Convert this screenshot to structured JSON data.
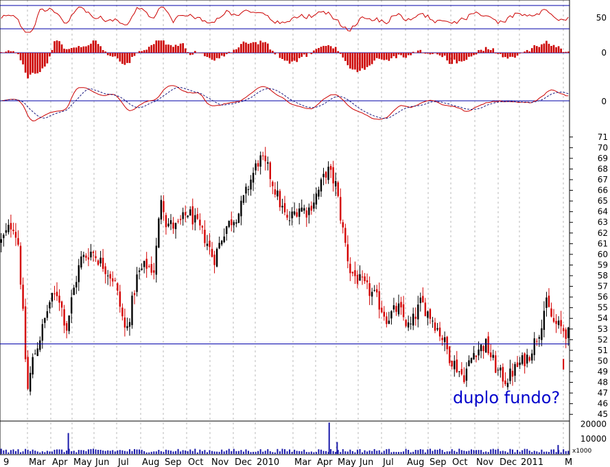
{
  "chart_data": {
    "type": "candlestick",
    "title": "",
    "annotation": "duplo fundo?",
    "volume_multiplier_label": "x1000",
    "months": [
      {
        "label": "9"
      },
      {
        "label": "Mar"
      },
      {
        "label": "Apr"
      },
      {
        "label": "May"
      },
      {
        "label": "Jun"
      },
      {
        "label": "Jul"
      },
      {
        "label": "Aug"
      },
      {
        "label": "Sep"
      },
      {
        "label": "Oct"
      },
      {
        "label": "Nov"
      },
      {
        "label": "Dec"
      },
      {
        "label": "2010"
      },
      {
        "label": "Mar"
      },
      {
        "label": "Apr"
      },
      {
        "label": "May"
      },
      {
        "label": "Jun"
      },
      {
        "label": "Jul"
      },
      {
        "label": "Aug"
      },
      {
        "label": "Sep"
      },
      {
        "label": "Oct"
      },
      {
        "label": "Nov"
      },
      {
        "label": "Dec"
      },
      {
        "label": "2011"
      },
      {
        "label": "M"
      }
    ],
    "price_axis": {
      "min": 44.5,
      "max": 71.5,
      "ticks": [
        45,
        46,
        47,
        48,
        49,
        50,
        51,
        52,
        53,
        54,
        55,
        56,
        57,
        58,
        59,
        60,
        61,
        62,
        63,
        64,
        65,
        66,
        67,
        68,
        69,
        70,
        71
      ]
    },
    "support_level": 51.6,
    "price_path_anchors": [
      {
        "t": 0.0,
        "v": 61.2
      },
      {
        "t": 0.02,
        "v": 63.0
      },
      {
        "t": 0.03,
        "v": 61.0
      },
      {
        "t": 0.04,
        "v": 53.0
      },
      {
        "t": 0.046,
        "v": 47.0
      },
      {
        "t": 0.055,
        "v": 50.0
      },
      {
        "t": 0.07,
        "v": 52.5
      },
      {
        "t": 0.085,
        "v": 55.5
      },
      {
        "t": 0.1,
        "v": 56.5
      },
      {
        "t": 0.115,
        "v": 53.0
      },
      {
        "t": 0.125,
        "v": 56.0
      },
      {
        "t": 0.14,
        "v": 59.5
      },
      {
        "t": 0.16,
        "v": 60.3
      },
      {
        "t": 0.18,
        "v": 59.0
      },
      {
        "t": 0.2,
        "v": 57.5
      },
      {
        "t": 0.22,
        "v": 52.5
      },
      {
        "t": 0.24,
        "v": 58.0
      },
      {
        "t": 0.255,
        "v": 59.0
      },
      {
        "t": 0.27,
        "v": 58.5
      },
      {
        "t": 0.283,
        "v": 66.0
      },
      {
        "t": 0.29,
        "v": 63.0
      },
      {
        "t": 0.31,
        "v": 62.5
      },
      {
        "t": 0.33,
        "v": 64.0
      },
      {
        "t": 0.36,
        "v": 61.5
      },
      {
        "t": 0.375,
        "v": 59.5
      },
      {
        "t": 0.395,
        "v": 62.5
      },
      {
        "t": 0.42,
        "v": 64.0
      },
      {
        "t": 0.44,
        "v": 67.0
      },
      {
        "t": 0.455,
        "v": 69.0
      },
      {
        "t": 0.47,
        "v": 68.0
      },
      {
        "t": 0.49,
        "v": 65.0
      },
      {
        "t": 0.505,
        "v": 63.0
      },
      {
        "t": 0.525,
        "v": 64.5
      },
      {
        "t": 0.54,
        "v": 64.0
      },
      {
        "t": 0.56,
        "v": 66.0
      },
      {
        "t": 0.575,
        "v": 68.0
      },
      {
        "t": 0.59,
        "v": 66.5
      },
      {
        "t": 0.6,
        "v": 63.0
      },
      {
        "t": 0.615,
        "v": 58.5
      },
      {
        "t": 0.64,
        "v": 57.0
      },
      {
        "t": 0.66,
        "v": 56.0
      },
      {
        "t": 0.68,
        "v": 54.0
      },
      {
        "t": 0.7,
        "v": 55.0
      },
      {
        "t": 0.72,
        "v": 53.0
      },
      {
        "t": 0.74,
        "v": 55.5
      },
      {
        "t": 0.76,
        "v": 54.0
      },
      {
        "t": 0.78,
        "v": 52.0
      },
      {
        "t": 0.79,
        "v": 50.5
      },
      {
        "t": 0.815,
        "v": 48.5
      },
      {
        "t": 0.835,
        "v": 51.0
      },
      {
        "t": 0.855,
        "v": 51.5
      },
      {
        "t": 0.875,
        "v": 49.0
      },
      {
        "t": 0.89,
        "v": 48.2
      },
      {
        "t": 0.91,
        "v": 49.5
      },
      {
        "t": 0.93,
        "v": 50.5
      },
      {
        "t": 0.95,
        "v": 53.0
      },
      {
        "t": 0.96,
        "v": 55.5
      },
      {
        "t": 0.975,
        "v": 53.5
      },
      {
        "t": 0.99,
        "v": 53.0
      },
      {
        "t": 1.0,
        "v": 52.5
      }
    ],
    "late_gap_candle": {
      "open": 50.2,
      "close": 49.2
    },
    "indicators": [
      {
        "name": "oscillator-1",
        "tick_label": "50",
        "upper_line_label": ""
      },
      {
        "name": "histogram",
        "tick_label": "0"
      },
      {
        "name": "macd",
        "tick_label": "0"
      }
    ],
    "volume_axis": {
      "ticks": [
        {
          "value": 20000,
          "label": "20000"
        },
        {
          "value": 10000,
          "label": "10000"
        }
      ]
    },
    "volume_spikes": [
      {
        "t": 0.12,
        "value": 14000
      },
      {
        "t": 0.578,
        "value": 21000
      },
      {
        "t": 0.592,
        "value": 8000
      },
      {
        "t": 0.98,
        "value": 6000
      }
    ],
    "colors": {
      "background": "#ffffff",
      "up_candle": "#000000",
      "down_candle": "#d40000",
      "indicator_line": "#cc0000",
      "signal_line": "#1a1a80",
      "reference_line": "#0000aa",
      "volume": "#1a1aaa",
      "gridline": "#b8b8b8",
      "annotation": "#0000cc"
    }
  }
}
